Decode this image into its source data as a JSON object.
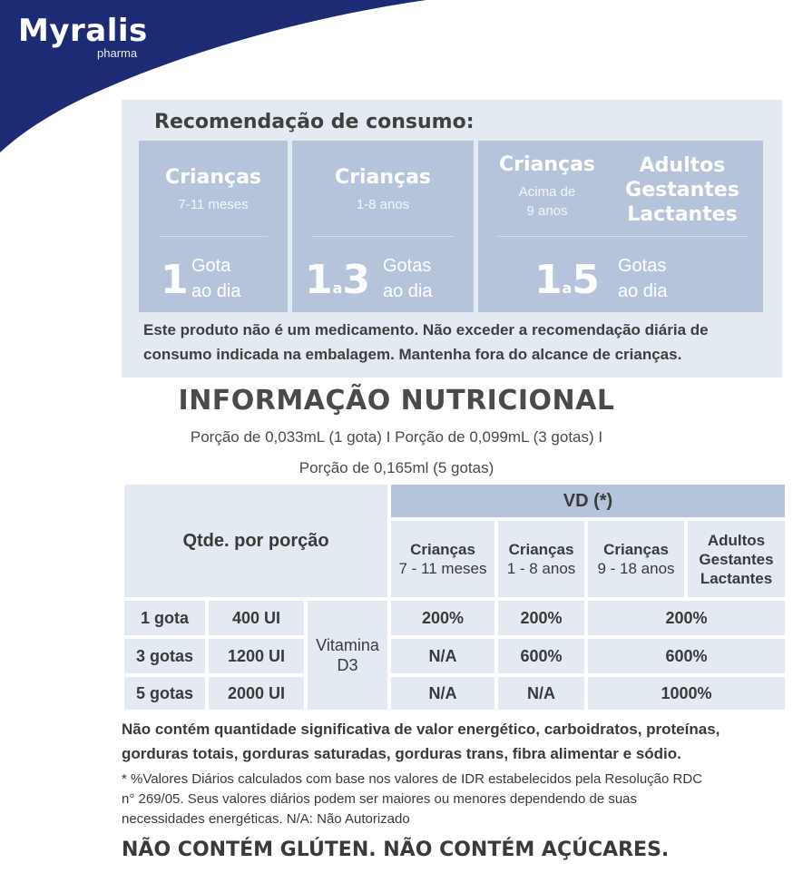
{
  "brand": {
    "name": "Myralis",
    "sub": "pharma",
    "color": "#1d2a74"
  },
  "recommendation": {
    "title": "Recomendação de consumo:",
    "col1": {
      "head": "Crianças",
      "sub": "7-11 meses",
      "qty": "1",
      "unit_top": "Gota",
      "unit_bottom": "ao dia"
    },
    "col2": {
      "head": "Crianças",
      "sub": "1-8 anos",
      "q1": "1",
      "a": "a",
      "q2": "3",
      "unit_top": "Gotas",
      "unit_bottom": "ao dia"
    },
    "col3": {
      "head_left": "Crianças",
      "sub_left_1": "Acima de",
      "sub_left_2": "9 anos",
      "head_right_1": "Adultos",
      "head_right_2": "Gestantes",
      "head_right_3": "Lactantes",
      "q1": "1",
      "a": "a",
      "q2": "5",
      "unit_top": "Gotas",
      "unit_bottom": "ao dia"
    },
    "note_1": "Este produto não é um medicamento.  Não exceder a recomendação diária de",
    "note_2": "consumo indicada na embalagem. Mantenha fora do alcance de crianças."
  },
  "nutrition": {
    "title": "INFORMAÇÃO NUTRICIONAL",
    "portion_1": "Porção de 0,033mL (1 gota) I Porção de 0,099mL (3 gotas) I",
    "portion_2": "Porção de 0,165ml (5 gotas)",
    "qty_header": "Qtde. por porção",
    "vd_header": "VD (*)",
    "groups": [
      {
        "title": "Crianças",
        "sub": "7 - 11 meses"
      },
      {
        "title": "Crianças",
        "sub": "1 - 8 anos"
      },
      {
        "title": "Crianças",
        "sub": "9 - 18 anos"
      },
      {
        "title_1": "Adultos",
        "title_2": "Gestantes",
        "title_3": "Lactantes"
      }
    ],
    "vitamin_1": "Vitamina",
    "vitamin_2": "D3",
    "rows": [
      {
        "portion": "1 gota",
        "amount": "400 UI",
        "v1": "200%",
        "v2": "200%",
        "v3": "200%"
      },
      {
        "portion": "3 gotas",
        "amount": "1200 UI",
        "v1": "N/A",
        "v2": "600%",
        "v3": "600%"
      },
      {
        "portion": "5 gotas",
        "amount": "2000 UI",
        "v1": "N/A",
        "v2": "N/A",
        "v3": "1000%"
      }
    ]
  },
  "footer": {
    "bold_1": "Não contém quantidade significativa de valor energético, carboidratos, proteínas,",
    "bold_2": "gorduras totais, gorduras saturadas, gorduras trans, fibra alimentar e sódio.",
    "footnote_1": "* %Valores Diários calculados com base nos valores de IDR estabelecidos pela Resolução RDC",
    "footnote_2": "n° 269/05. Seus valores diários podem ser maiores ou menores dependendo de suas",
    "footnote_3": "necessidades energéticas. N/A: Não Autorizado",
    "final": "NÃO CONTÉM GLÚTEN. NÃO CONTÉM AÇÚCARES."
  }
}
